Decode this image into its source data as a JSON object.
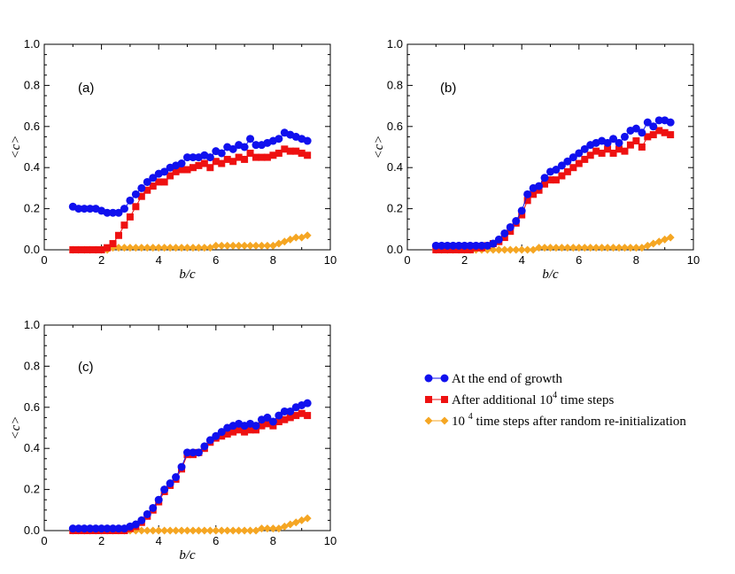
{
  "chart_data": {
    "type": "scatter",
    "legend": {
      "placement": "bottom-right",
      "entries": [
        {
          "series": "blue",
          "parts": [
            {
              "t": "At the end of growth",
              "sup": false
            }
          ]
        },
        {
          "series": "red",
          "parts": [
            {
              "t": "After additional 10",
              "sup": false
            },
            {
              "t": "4",
              "sup": true
            },
            {
              "t": " time steps",
              "sup": false
            }
          ]
        },
        {
          "series": "orange",
          "parts": [
            {
              "t": "10 ",
              "sup": false
            },
            {
              "t": "4",
              "sup": true
            },
            {
              "t": " time steps after random re-initialization",
              "sup": false
            }
          ]
        }
      ]
    },
    "series_styles": {
      "blue": {
        "color": "#1010ee",
        "marker": "circle"
      },
      "red": {
        "color": "#ee1111",
        "marker": "square"
      },
      "orange": {
        "color": "#f5a623",
        "marker": "diamond"
      }
    },
    "panels": [
      {
        "id": "a",
        "label": "(a)",
        "xlabel": "b/c",
        "ylabel": "<c>",
        "xlim": [
          0,
          10
        ],
        "ylim": [
          0,
          1.0
        ],
        "xticks": [
          "0",
          "2",
          "4",
          "6",
          "8",
          "10"
        ],
        "yticks": [
          "0.0",
          "0.2",
          "0.4",
          "0.6",
          "0.8",
          "1.0"
        ],
        "x": [
          1.0,
          1.2,
          1.4,
          1.6,
          1.8,
          2.0,
          2.2,
          2.4,
          2.6,
          2.8,
          3.0,
          3.2,
          3.4,
          3.6,
          3.8,
          4.0,
          4.2,
          4.4,
          4.6,
          4.8,
          5.0,
          5.2,
          5.4,
          5.6,
          5.8,
          6.0,
          6.2,
          6.4,
          6.6,
          6.8,
          7.0,
          7.2,
          7.4,
          7.6,
          7.8,
          8.0,
          8.2,
          8.4,
          8.6,
          8.8,
          9.0,
          9.2
        ],
        "series": [
          {
            "key": "blue",
            "values": [
              0.21,
              0.2,
              0.2,
              0.2,
              0.2,
              0.19,
              0.18,
              0.18,
              0.18,
              0.2,
              0.24,
              0.27,
              0.3,
              0.33,
              0.35,
              0.37,
              0.38,
              0.4,
              0.41,
              0.42,
              0.45,
              0.45,
              0.45,
              0.46,
              0.45,
              0.48,
              0.47,
              0.5,
              0.49,
              0.51,
              0.5,
              0.54,
              0.51,
              0.51,
              0.52,
              0.53,
              0.54,
              0.57,
              0.56,
              0.55,
              0.54,
              0.53
            ]
          },
          {
            "key": "red",
            "values": [
              0.0,
              0.0,
              0.0,
              0.0,
              0.0,
              0.0,
              0.01,
              0.03,
              0.07,
              0.12,
              0.16,
              0.21,
              0.26,
              0.29,
              0.31,
              0.33,
              0.33,
              0.36,
              0.38,
              0.39,
              0.39,
              0.4,
              0.41,
              0.42,
              0.4,
              0.43,
              0.42,
              0.44,
              0.43,
              0.45,
              0.44,
              0.47,
              0.45,
              0.45,
              0.45,
              0.46,
              0.47,
              0.49,
              0.48,
              0.48,
              0.47,
              0.46
            ]
          },
          {
            "key": "orange",
            "values": [
              0.0,
              0.0,
              0.0,
              0.0,
              0.0,
              0.0,
              0.0,
              0.01,
              0.01,
              0.01,
              0.01,
              0.01,
              0.01,
              0.01,
              0.01,
              0.01,
              0.01,
              0.01,
              0.01,
              0.01,
              0.01,
              0.01,
              0.01,
              0.01,
              0.01,
              0.02,
              0.02,
              0.02,
              0.02,
              0.02,
              0.02,
              0.02,
              0.02,
              0.02,
              0.02,
              0.02,
              0.03,
              0.04,
              0.05,
              0.06,
              0.06,
              0.07
            ]
          }
        ]
      },
      {
        "id": "b",
        "label": "(b)",
        "xlabel": "b/c",
        "ylabel": "<c>",
        "xlim": [
          0,
          10
        ],
        "ylim": [
          0,
          1.0
        ],
        "xticks": [
          "0",
          "2",
          "4",
          "6",
          "8",
          "10"
        ],
        "yticks": [
          "0.0",
          "0.2",
          "0.4",
          "0.6",
          "0.8",
          "1.0"
        ],
        "x": [
          1.0,
          1.2,
          1.4,
          1.6,
          1.8,
          2.0,
          2.2,
          2.4,
          2.6,
          2.8,
          3.0,
          3.2,
          3.4,
          3.6,
          3.8,
          4.0,
          4.2,
          4.4,
          4.6,
          4.8,
          5.0,
          5.2,
          5.4,
          5.6,
          5.8,
          6.0,
          6.2,
          6.4,
          6.6,
          6.8,
          7.0,
          7.2,
          7.4,
          7.6,
          7.8,
          8.0,
          8.2,
          8.4,
          8.6,
          8.8,
          9.0,
          9.2
        ],
        "series": [
          {
            "key": "blue",
            "values": [
              0.02,
              0.02,
              0.02,
              0.02,
              0.02,
              0.02,
              0.02,
              0.02,
              0.02,
              0.02,
              0.03,
              0.05,
              0.08,
              0.11,
              0.14,
              0.19,
              0.27,
              0.3,
              0.31,
              0.35,
              0.38,
              0.39,
              0.41,
              0.43,
              0.45,
              0.47,
              0.49,
              0.51,
              0.52,
              0.53,
              0.52,
              0.54,
              0.52,
              0.55,
              0.58,
              0.59,
              0.57,
              0.62,
              0.6,
              0.63,
              0.63,
              0.62
            ]
          },
          {
            "key": "red",
            "values": [
              0.0,
              0.0,
              0.0,
              0.0,
              0.0,
              0.0,
              0.0,
              0.01,
              0.01,
              0.02,
              0.03,
              0.04,
              0.06,
              0.09,
              0.13,
              0.17,
              0.24,
              0.27,
              0.29,
              0.32,
              0.34,
              0.34,
              0.36,
              0.38,
              0.4,
              0.42,
              0.44,
              0.46,
              0.48,
              0.47,
              0.49,
              0.47,
              0.49,
              0.48,
              0.51,
              0.53,
              0.5,
              0.55,
              0.56,
              0.58,
              0.57,
              0.56
            ]
          },
          {
            "key": "orange",
            "values": [
              0.0,
              0.0,
              0.0,
              0.0,
              0.0,
              0.0,
              0.0,
              0.0,
              0.0,
              0.0,
              0.0,
              0.0,
              0.0,
              0.0,
              0.0,
              0.0,
              0.0,
              0.0,
              0.01,
              0.01,
              0.01,
              0.01,
              0.01,
              0.01,
              0.01,
              0.01,
              0.01,
              0.01,
              0.01,
              0.01,
              0.01,
              0.01,
              0.01,
              0.01,
              0.01,
              0.01,
              0.01,
              0.02,
              0.03,
              0.04,
              0.05,
              0.06
            ]
          }
        ]
      },
      {
        "id": "c",
        "label": "(c)",
        "xlabel": "b/c",
        "ylabel": "<c>",
        "xlim": [
          0,
          10
        ],
        "ylim": [
          0,
          1.0
        ],
        "xticks": [
          "0",
          "2",
          "4",
          "6",
          "8",
          "10"
        ],
        "yticks": [
          "0.0",
          "0.2",
          "0.4",
          "0.6",
          "0.8",
          "1.0"
        ],
        "x": [
          1.0,
          1.2,
          1.4,
          1.6,
          1.8,
          2.0,
          2.2,
          2.4,
          2.6,
          2.8,
          3.0,
          3.2,
          3.4,
          3.6,
          3.8,
          4.0,
          4.2,
          4.4,
          4.6,
          4.8,
          5.0,
          5.2,
          5.4,
          5.6,
          5.8,
          6.0,
          6.2,
          6.4,
          6.6,
          6.8,
          7.0,
          7.2,
          7.4,
          7.6,
          7.8,
          8.0,
          8.2,
          8.4,
          8.6,
          8.8,
          9.0,
          9.2
        ],
        "series": [
          {
            "key": "blue",
            "values": [
              0.01,
              0.01,
              0.01,
              0.01,
              0.01,
              0.01,
              0.01,
              0.01,
              0.01,
              0.01,
              0.02,
              0.03,
              0.05,
              0.08,
              0.11,
              0.15,
              0.2,
              0.23,
              0.26,
              0.31,
              0.38,
              0.38,
              0.38,
              0.41,
              0.44,
              0.46,
              0.48,
              0.5,
              0.51,
              0.52,
              0.51,
              0.52,
              0.51,
              0.54,
              0.55,
              0.53,
              0.56,
              0.58,
              0.58,
              0.6,
              0.61,
              0.62
            ]
          },
          {
            "key": "red",
            "values": [
              0.0,
              0.0,
              0.0,
              0.0,
              0.0,
              0.0,
              0.0,
              0.0,
              0.0,
              0.0,
              0.01,
              0.02,
              0.04,
              0.07,
              0.1,
              0.14,
              0.19,
              0.22,
              0.25,
              0.3,
              0.37,
              0.37,
              0.38,
              0.4,
              0.43,
              0.45,
              0.46,
              0.47,
              0.48,
              0.49,
              0.48,
              0.49,
              0.49,
              0.51,
              0.52,
              0.51,
              0.53,
              0.54,
              0.55,
              0.56,
              0.57,
              0.56
            ]
          },
          {
            "key": "orange",
            "values": [
              0.0,
              0.0,
              0.0,
              0.0,
              0.0,
              0.0,
              0.0,
              0.0,
              0.0,
              0.0,
              0.0,
              0.0,
              0.0,
              0.0,
              0.0,
              0.0,
              0.0,
              0.0,
              0.0,
              0.0,
              0.0,
              0.0,
              0.0,
              0.0,
              0.0,
              0.0,
              0.0,
              0.0,
              0.0,
              0.0,
              0.0,
              0.0,
              0.0,
              0.01,
              0.01,
              0.01,
              0.01,
              0.02,
              0.03,
              0.04,
              0.05,
              0.06
            ]
          }
        ]
      }
    ]
  }
}
